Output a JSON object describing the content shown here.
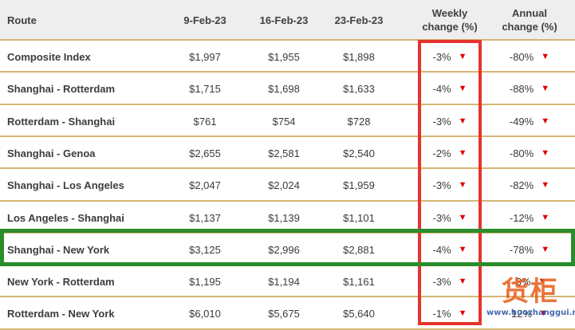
{
  "table": {
    "headers": {
      "route": "Route",
      "d1": "9-Feb-23",
      "d2": "16-Feb-23",
      "d3": "23-Feb-23",
      "weekly_line1": "Weekly",
      "weekly_line2": "change (%)",
      "annual_line1": "Annual",
      "annual_line2": "change (%)"
    },
    "rows": [
      {
        "route": "Composite Index",
        "d1": "$1,997",
        "d2": "$1,955",
        "d3": "$1,898",
        "weekly": "-3%",
        "annual": "-80%"
      },
      {
        "route": "Shanghai - Rotterdam",
        "d1": "$1,715",
        "d2": "$1,698",
        "d3": "$1,633",
        "weekly": "-4%",
        "annual": "-88%"
      },
      {
        "route": "Rotterdam - Shanghai",
        "d1": "$761",
        "d2": "$754",
        "d3": "$728",
        "weekly": "-3%",
        "annual": "-49%"
      },
      {
        "route": "Shanghai - Genoa",
        "d1": "$2,655",
        "d2": "$2,581",
        "d3": "$2,540",
        "weekly": "-2%",
        "annual": "-80%"
      },
      {
        "route": "Shanghai - Los Angeles",
        "d1": "$2,047",
        "d2": "$2,024",
        "d3": "$1,959",
        "weekly": "-3%",
        "annual": "-82%"
      },
      {
        "route": "Los Angeles - Shanghai",
        "d1": "$1,137",
        "d2": "$1,139",
        "d3": "$1,101",
        "weekly": "-3%",
        "annual": "-12%"
      },
      {
        "route": "Shanghai - New York",
        "d1": "$3,125",
        "d2": "$2,996",
        "d3": "$2,881",
        "weekly": "-4%",
        "annual": "-78%"
      },
      {
        "route": "New York - Rotterdam",
        "d1": "$1,195",
        "d2": "$1,194",
        "d3": "$1,161",
        "weekly": "-3%",
        "annual": "-3%"
      },
      {
        "route": "Rotterdam - New York",
        "d1": "$6,010",
        "d2": "$5,675",
        "d3": "$5,640",
        "weekly": "-1%",
        "annual": "12%"
      }
    ],
    "trend_icon": "down-triangle-icon"
  },
  "highlights": {
    "weekly_column_box_color": "#e5332e",
    "row_box_color": "#2b8c2b",
    "highlighted_route": "Shanghai - New York"
  },
  "watermark": {
    "text": "货柜",
    "url": "www.huozhanggui.net"
  },
  "colors": {
    "header_bg": "#eeeeee",
    "separator": "#d6b674",
    "down_arrow": "#dd0000"
  }
}
